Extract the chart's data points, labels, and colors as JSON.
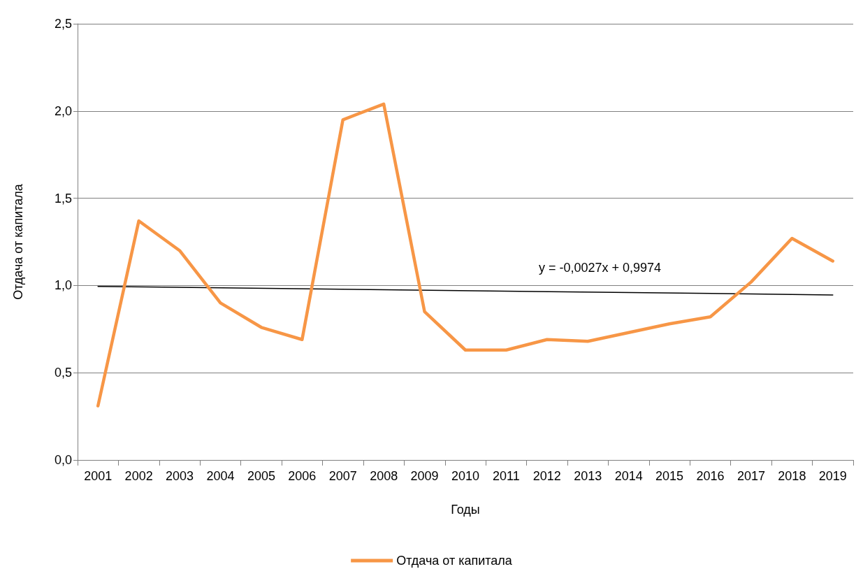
{
  "chart_data": {
    "type": "line",
    "xlabel": "Годы",
    "ylabel": "Отдача от капитала",
    "categories": [
      "2001",
      "2002",
      "2003",
      "2004",
      "2005",
      "2006",
      "2007",
      "2008",
      "2009",
      "2010",
      "2011",
      "2012",
      "2013",
      "2014",
      "2015",
      "2016",
      "2017",
      "2018",
      "2019"
    ],
    "series": [
      {
        "name": "Отдача от капитала",
        "color": "#f79646",
        "values": [
          0.31,
          1.37,
          1.2,
          0.9,
          0.76,
          0.69,
          1.95,
          2.04,
          0.85,
          0.63,
          0.63,
          0.69,
          0.68,
          0.73,
          0.78,
          0.82,
          1.02,
          1.27,
          1.14
        ]
      },
      {
        "color": "#000000",
        "values": [
          0.995,
          null,
          null,
          null,
          null,
          null,
          null,
          null,
          null,
          null,
          null,
          null,
          null,
          null,
          null,
          null,
          null,
          null,
          0.946
        ]
      }
    ],
    "ylim": [
      0,
      2.5
    ],
    "yticks": [
      {
        "value": 0,
        "label": "0,0"
      },
      {
        "value": 0.5,
        "label": "0,5"
      },
      {
        "value": 1,
        "label": "1,0"
      },
      {
        "value": 1.5,
        "label": "1,5"
      },
      {
        "value": 2,
        "label": "2,0"
      },
      {
        "value": 2.5,
        "label": "2,5"
      }
    ],
    "annotations": [
      "y = -0,0027x + 0,9974"
    ],
    "grid": "y",
    "legend": "bottom",
    "marker": "none",
    "line_style": "solid"
  }
}
